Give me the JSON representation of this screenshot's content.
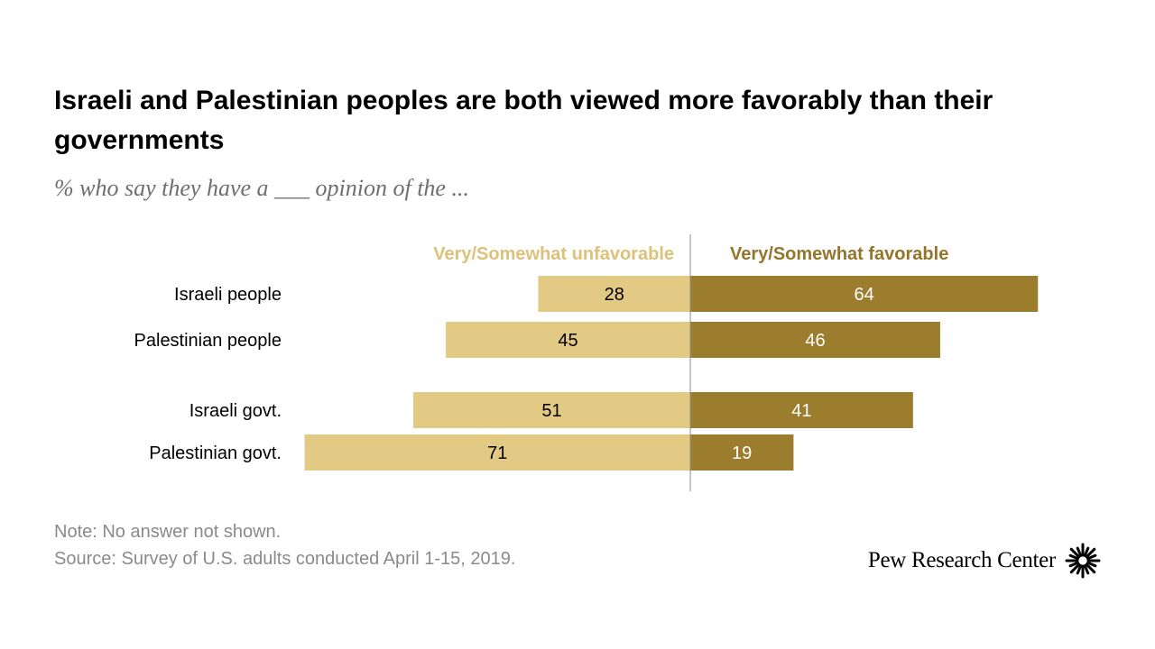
{
  "title": "Israeli and Palestinian peoples are both viewed more favorably than their governments",
  "subtitle": "% who say they have a ___ opinion of the ...",
  "note": "Note: No answer not shown.",
  "source": "Source: Survey of U.S. adults conducted April 1-15, 2019.",
  "logo_text": "Pew Research Center",
  "colors": {
    "unfavorable": "#e3ca84",
    "favorable": "#9c7c2d",
    "unfavorable_label": "#dcc17a",
    "favorable_label": "#94762b"
  },
  "chart_data": {
    "type": "bar",
    "orientation": "horizontal-diverging",
    "categories": [
      "Israeli people",
      "Palestinian people",
      "Israeli govt.",
      "Palestinian govt."
    ],
    "series": [
      {
        "name": "Very/Somewhat unfavorable",
        "values": [
          28,
          45,
          51,
          71
        ]
      },
      {
        "name": "Very/Somewhat favorable",
        "values": [
          64,
          46,
          41,
          19
        ]
      }
    ],
    "xlim": [
      -71,
      64
    ]
  }
}
